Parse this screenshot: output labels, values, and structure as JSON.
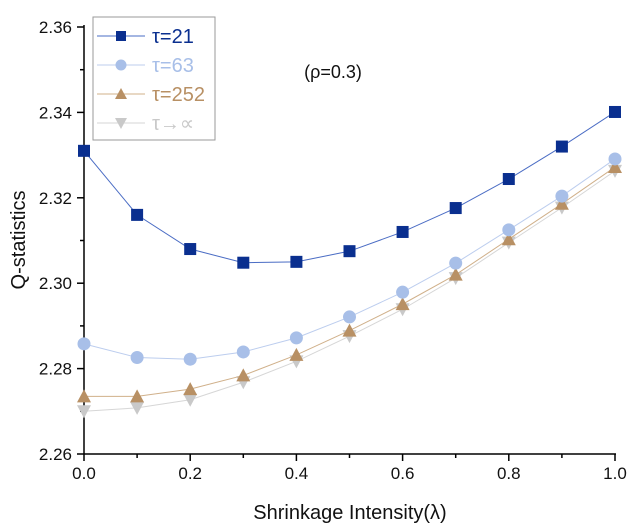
{
  "chart_data": {
    "type": "line",
    "title": "",
    "annotation": "(ρ=0.3)",
    "xlabel": "Shrinkage Intensity(λ)",
    "ylabel": "Q-statistics",
    "xlim": [
      0.0,
      1.0
    ],
    "ylim": [
      2.26,
      2.36
    ],
    "x": [
      0.0,
      0.1,
      0.2,
      0.3,
      0.4,
      0.5,
      0.6,
      0.7,
      0.8,
      0.9,
      1.0
    ],
    "xticks": [
      0.0,
      0.2,
      0.4,
      0.6,
      0.8,
      1.0
    ],
    "xtick_labels": [
      "0.0",
      "0.2",
      "0.4",
      "0.6",
      "0.8",
      "1.0"
    ],
    "xminor_ticks": [
      0.1,
      0.3,
      0.5,
      0.7,
      0.9
    ],
    "yticks": [
      2.26,
      2.28,
      2.3,
      2.32,
      2.34,
      2.36
    ],
    "ytick_labels": [
      "2.26",
      "2.28",
      "2.30",
      "2.32",
      "2.34",
      "2.36"
    ],
    "yminor_ticks": [
      2.27,
      2.29,
      2.31,
      2.33,
      2.35
    ],
    "grid": false,
    "legend_position": "top-left",
    "series": [
      {
        "name": "τ=21",
        "marker": "square",
        "color": "#0a2f8f",
        "line_color": "#4a6cc4",
        "values": [
          2.331,
          2.316,
          2.308,
          2.3048,
          2.305,
          2.3075,
          2.312,
          2.3176,
          2.3244,
          2.332,
          2.3401
        ]
      },
      {
        "name": "τ=63",
        "marker": "circle",
        "color": "#a8bfe8",
        "line_color": "#bccdee",
        "values": [
          2.2858,
          2.2826,
          2.2822,
          2.2839,
          2.2872,
          2.2921,
          2.2979,
          2.3047,
          2.3125,
          2.3204,
          2.3291
        ]
      },
      {
        "name": "τ=252",
        "marker": "triangle-up",
        "color": "#b89064",
        "line_color": "#d0b08a",
        "values": [
          2.2735,
          2.2735,
          2.2752,
          2.2784,
          2.2832,
          2.2889,
          2.2951,
          2.302,
          2.3103,
          2.3186,
          2.3272
        ]
      },
      {
        "name": "τ→∝",
        "marker": "triangle-down",
        "color": "#c9c9c9",
        "line_color": "#d6d6d6",
        "values": [
          2.27,
          2.2708,
          2.2727,
          2.2768,
          2.2817,
          2.2876,
          2.2939,
          2.3012,
          2.3095,
          2.3177,
          2.3263
        ]
      }
    ]
  }
}
